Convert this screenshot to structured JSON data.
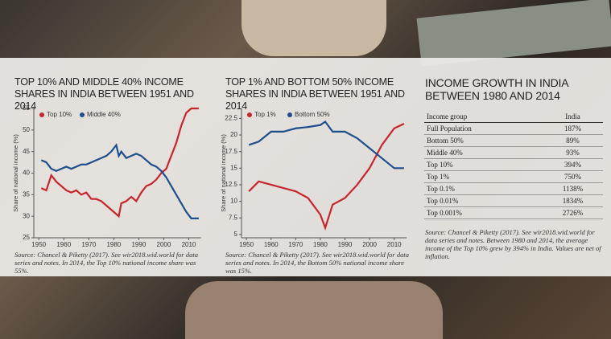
{
  "chart_data": [
    {
      "type": "line",
      "title": "Top 10% and Middle 40% income shares in India between 1951 and 2014",
      "y_label": "Share of national income (%)",
      "xlim": [
        1948,
        2015
      ],
      "xticks": [
        1950,
        1960,
        1970,
        1980,
        1990,
        2000,
        2010
      ],
      "ylim": [
        25,
        55
      ],
      "yticks": [
        25,
        30,
        35,
        40,
        45,
        50,
        55
      ],
      "x": [
        1951,
        1953,
        1955,
        1957,
        1959,
        1961,
        1963,
        1965,
        1967,
        1969,
        1971,
        1973,
        1975,
        1977,
        1979,
        1981,
        1982,
        1983,
        1985,
        1987,
        1989,
        1991,
        1993,
        1995,
        1997,
        1999,
        2001,
        2003,
        2005,
        2007,
        2009,
        2011,
        2014
      ],
      "series": [
        {
          "name": "Top 10%",
          "color": "#c8242b",
          "values": [
            36.5,
            36,
            39.5,
            38,
            37,
            36,
            35.5,
            36,
            35,
            35.5,
            34,
            34,
            33.5,
            32.5,
            31.5,
            30.5,
            30,
            33,
            33.5,
            34.5,
            33.5,
            35.5,
            37,
            37.5,
            38.5,
            40,
            41,
            44,
            47,
            51,
            54,
            55,
            55
          ]
        },
        {
          "name": "Middle 40%",
          "color": "#1f4e8c",
          "values": [
            43,
            42.5,
            41,
            40.5,
            41,
            41.5,
            41,
            41.5,
            42,
            42,
            42.5,
            43,
            43.5,
            44,
            45,
            46.5,
            44,
            45,
            43.5,
            44,
            44.5,
            44,
            43,
            42,
            41.5,
            40.5,
            39,
            37,
            35,
            33,
            31,
            29.5,
            29.5
          ]
        }
      ],
      "note": "Source: Chancel & Piketty (2017). See wir2018.wid.world for data series and notes. In 2014, the Top 10% national income share was 55%."
    },
    {
      "type": "line",
      "title": "Top 1% and Bottom 50% income shares in India between 1951 and 2014",
      "y_label": "Share of national income (%)",
      "xlim": [
        1948,
        2015
      ],
      "xticks": [
        1950,
        1960,
        1970,
        1980,
        1990,
        2000,
        2010
      ],
      "ylim": [
        4.5,
        24
      ],
      "yticks": [
        5,
        7.5,
        10,
        12.5,
        15,
        17.5,
        20,
        22.5
      ],
      "x": [
        1951,
        1955,
        1960,
        1965,
        1970,
        1975,
        1980,
        1982,
        1985,
        1990,
        1995,
        2000,
        2005,
        2010,
        2014
      ],
      "series": [
        {
          "name": "Top 1%",
          "color": "#c8242b",
          "values": [
            11.5,
            13,
            12.5,
            12,
            11.5,
            10.5,
            8,
            6,
            9.5,
            10.5,
            12.5,
            15,
            18.5,
            21,
            21.7
          ]
        },
        {
          "name": "Bottom 50%",
          "color": "#1f4e8c",
          "values": [
            18.5,
            19,
            20.5,
            20.5,
            21,
            21.2,
            21.5,
            22,
            20.5,
            20.5,
            19.5,
            18,
            16.5,
            15,
            15
          ]
        }
      ],
      "note": "Source: Chancel & Piketty (2017). See wir2018.wid.world for data series and notes. In 2014, the Bottom 50% national income share was 15%."
    }
  ],
  "table": {
    "title": "Income growth in India between 1980 and 2014",
    "header": [
      "Income group",
      "India"
    ],
    "rows": [
      [
        "Full Population",
        "187%"
      ],
      [
        "Bottom 50%",
        "89%"
      ],
      [
        "Middle 40%",
        "93%"
      ],
      [
        "Top 10%",
        "394%"
      ],
      [
        "Top 1%",
        "750%"
      ],
      [
        "Top 0.1%",
        "1138%"
      ],
      [
        "Top 0.01%",
        "1834%"
      ],
      [
        "Top 0.001%",
        "2726%"
      ]
    ],
    "note": "Source: Chancel & Piketty (2017). See wir2018.wid.world for data series and notes. Between 1980 and 2014, the average income of the Top 10% grew by 394% in India. Values are net of inflation."
  }
}
